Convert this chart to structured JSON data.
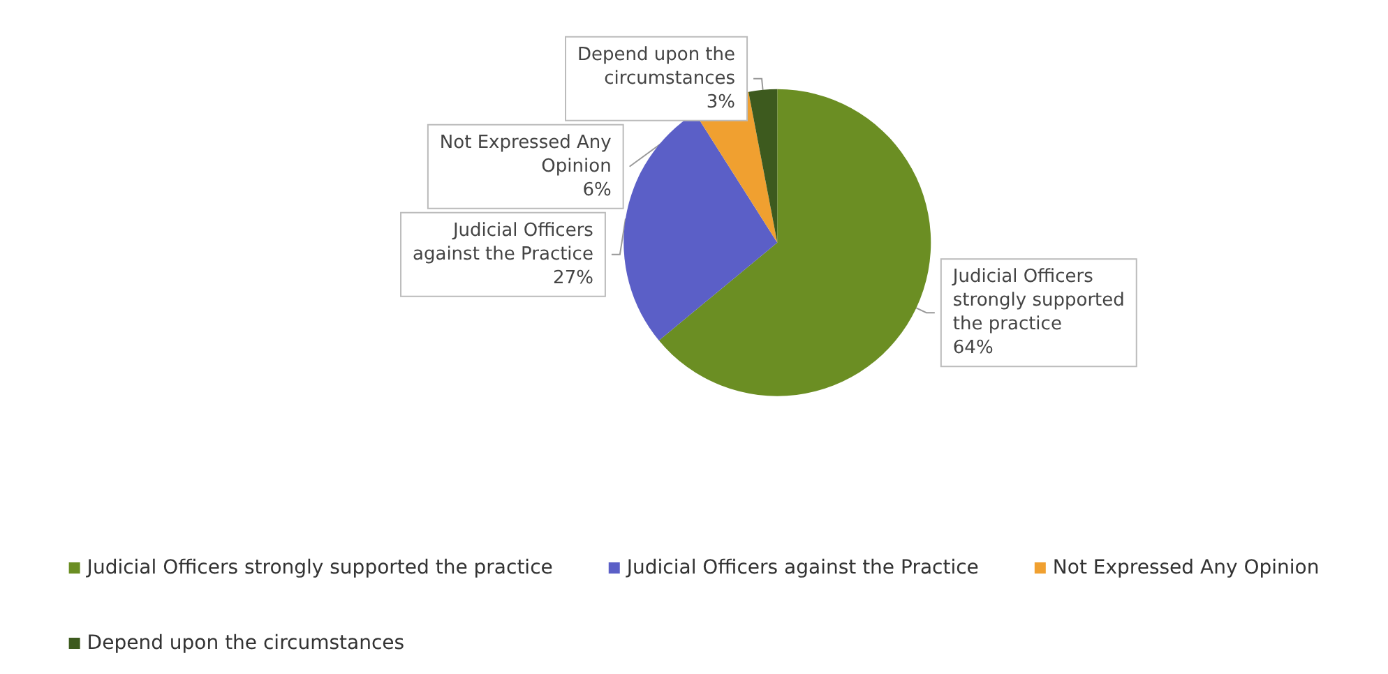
{
  "chart_data": {
    "type": "pie",
    "categories": [
      "Judicial Officers strongly supported the practice",
      "Judicial Officers against the Practice",
      "Not Expressed Any Opinion",
      "Depend upon the circumstances"
    ],
    "values": [
      64,
      27,
      6,
      3
    ],
    "value_labels": [
      "64%",
      "27%",
      "6%",
      "3%"
    ],
    "colors": [
      "#6b8e23",
      "#5b5fc7",
      "#f0a030",
      "#3d5a1e"
    ],
    "legend": "bottom"
  }
}
